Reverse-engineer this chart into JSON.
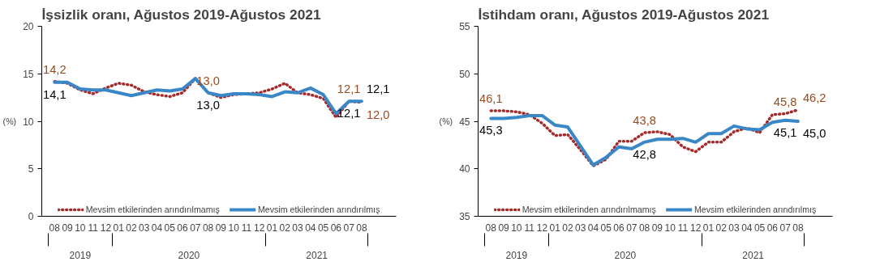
{
  "chart_data": [
    {
      "type": "line",
      "title": "İşsizlik oranı, Ağustos 2019-Ağustos 2021",
      "ylabel": "(%)",
      "categories": [
        "08",
        "09",
        "10",
        "11",
        "12",
        "01",
        "02",
        "03",
        "04",
        "05",
        "06",
        "07",
        "08",
        "09",
        "10",
        "11",
        "12",
        "01",
        "02",
        "03",
        "04",
        "05",
        "06",
        "07",
        "08"
      ],
      "annotations": [
        "2019",
        "2020",
        "2021"
      ],
      "ylim": [
        0,
        20
      ],
      "yticks": [
        0,
        5,
        10,
        15,
        20
      ],
      "grid": false,
      "legend": "bottom",
      "series": [
        {
          "name": "Mevsim etkilerinden arındırılmamış",
          "color": "#a52a2a",
          "line_style": "dotted",
          "values": [
            14.2,
            14.0,
            13.3,
            12.9,
            13.5,
            14.0,
            13.8,
            13.1,
            12.8,
            12.6,
            13.0,
            14.5,
            13.0,
            12.5,
            12.8,
            12.9,
            13.0,
            13.4,
            14.0,
            13.0,
            12.8,
            12.4,
            10.4,
            12.1,
            12.0
          ],
          "value_labels": [
            "14,2",
            null,
            null,
            null,
            null,
            null,
            null,
            null,
            null,
            null,
            null,
            null,
            "13,0",
            null,
            null,
            null,
            null,
            null,
            null,
            null,
            null,
            null,
            null,
            "12,1",
            "12,0"
          ]
        },
        {
          "name": "Mevsim etkilerinden arındırılmış",
          "color": "#3a87c8",
          "line_style": "solid",
          "values": [
            14.1,
            14.1,
            13.4,
            13.3,
            13.3,
            13.0,
            12.7,
            13.0,
            13.3,
            13.2,
            13.4,
            14.5,
            13.0,
            12.7,
            12.9,
            12.9,
            12.8,
            12.6,
            13.1,
            13.0,
            13.5,
            12.8,
            10.8,
            12.1,
            12.1
          ],
          "value_labels": [
            "14,1",
            null,
            null,
            null,
            null,
            null,
            null,
            null,
            null,
            null,
            null,
            null,
            "13,0",
            null,
            null,
            null,
            null,
            null,
            null,
            null,
            null,
            null,
            null,
            "12,1",
            "12,1"
          ]
        }
      ]
    },
    {
      "type": "line",
      "title": "İstihdam oranı, Ağustos 2019-Ağustos 2021",
      "ylabel": "(%)",
      "categories": [
        "08",
        "09",
        "10",
        "11",
        "12",
        "01",
        "02",
        "03",
        "04",
        "05",
        "06",
        "07",
        "08",
        "09",
        "10",
        "11",
        "12",
        "01",
        "02",
        "03",
        "04",
        "05",
        "06",
        "07",
        "08"
      ],
      "annotations": [
        "2019",
        "2020",
        "2021"
      ],
      "ylim": [
        35,
        55
      ],
      "yticks": [
        35,
        40,
        45,
        50,
        55
      ],
      "grid": false,
      "legend": "bottom",
      "series": [
        {
          "name": "Mevsim etkilerinden arındırılmamış",
          "color": "#a52a2a",
          "line_style": "dotted",
          "values": [
            46.1,
            46.1,
            46.0,
            45.7,
            44.8,
            43.5,
            43.6,
            42.0,
            40.3,
            41.0,
            42.9,
            42.9,
            43.8,
            43.9,
            43.6,
            42.3,
            41.8,
            42.8,
            42.8,
            43.9,
            44.3,
            43.8,
            45.7,
            45.8,
            46.2
          ],
          "value_labels": [
            "46,1",
            null,
            null,
            null,
            null,
            null,
            null,
            null,
            null,
            null,
            null,
            null,
            "43,8",
            null,
            null,
            null,
            null,
            null,
            null,
            null,
            null,
            null,
            null,
            "45,8",
            "46,2"
          ]
        },
        {
          "name": "Mevsim etkilerinden arındırılmış",
          "color": "#3a87c8",
          "line_style": "solid",
          "values": [
            45.3,
            45.3,
            45.4,
            45.6,
            45.6,
            44.6,
            44.4,
            42.4,
            40.4,
            41.2,
            42.3,
            42.1,
            42.8,
            43.1,
            43.1,
            43.2,
            42.8,
            43.7,
            43.7,
            44.5,
            44.2,
            44.1,
            44.9,
            45.1,
            45.0
          ],
          "value_labels": [
            "45,3",
            null,
            null,
            null,
            null,
            null,
            null,
            null,
            null,
            null,
            null,
            null,
            "42,8",
            null,
            null,
            null,
            null,
            null,
            null,
            null,
            null,
            null,
            null,
            "45,1",
            "45,0"
          ]
        }
      ]
    }
  ]
}
